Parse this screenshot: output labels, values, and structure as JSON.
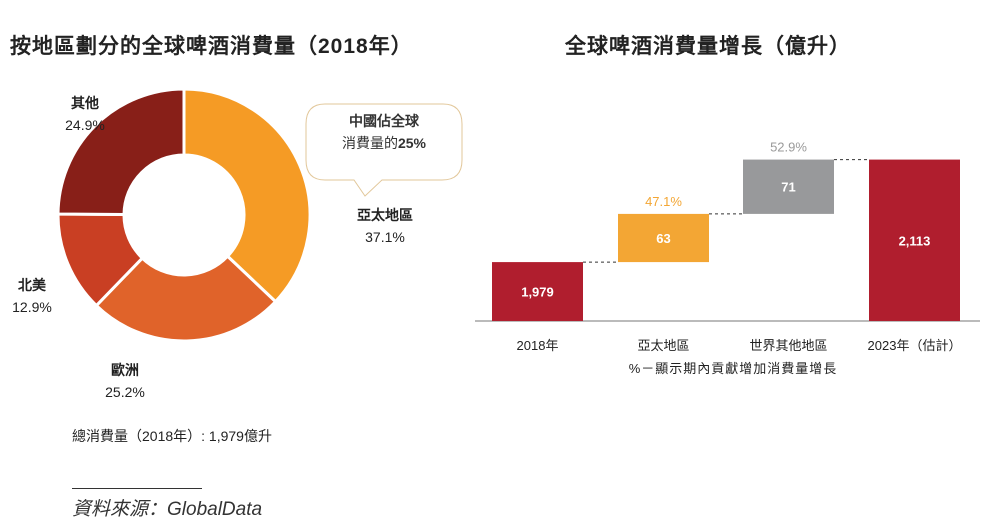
{
  "left_title": "按地區劃分的全球啤酒消費量（2018年）",
  "right_title": "全球啤酒消費量增長（億升）",
  "callout": {
    "line1": "中國佔全球",
    "line2_prefix": "消費量的",
    "line2_value": "25%"
  },
  "total_label": "總消費量（2018年）: 1,979億升",
  "source": "資料來源：GlobalData",
  "chart_data": [
    {
      "type": "pie",
      "donut": true,
      "slices": [
        {
          "label": "亞太地區",
          "value": 37.1,
          "value_label": "37.1%",
          "color": "#F59B25"
        },
        {
          "label": "歐洲",
          "value": 25.2,
          "value_label": "25.2%",
          "color": "#E0632A"
        },
        {
          "label": "北美",
          "value": 12.9,
          "value_label": "12.9%",
          "color": "#C93F23"
        },
        {
          "label": "其他",
          "value": 24.9,
          "value_label": "24.9%",
          "color": "#881F18"
        }
      ],
      "start": "top",
      "direction": "clockwise"
    },
    {
      "type": "bar",
      "subtype": "waterfall",
      "categories": [
        "2018年",
        "亞太地區",
        "世界其他地區",
        "2023年（估計）"
      ],
      "values": [
        1979,
        63,
        71,
        2113
      ],
      "value_labels": [
        "1,979",
        "63",
        "71",
        "2,113"
      ],
      "kinds": [
        "total",
        "increment",
        "increment",
        "total"
      ],
      "share_labels": [
        "",
        "47.1%",
        "52.9%",
        ""
      ],
      "colors": [
        "#B01E2E",
        "#F3A634",
        "#98999B",
        "#B01E2E"
      ],
      "share_label_colors": [
        "",
        "#F3A634",
        "#9A9A9A",
        ""
      ],
      "footnote": "%－顯示期內貢獻增加消費量增長",
      "axis_truncated": true
    }
  ]
}
